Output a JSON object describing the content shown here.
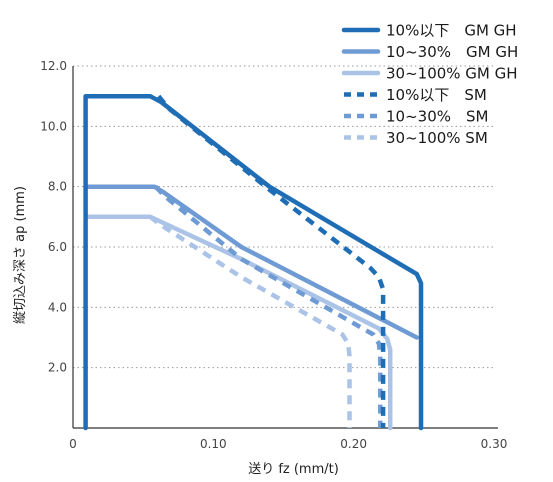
{
  "chart_data": {
    "type": "line",
    "xlabel": "送り fz (mm/t)",
    "ylabel": "縦切込み深さ ap (mm)",
    "xlim": [
      0,
      0.3
    ],
    "ylim": [
      0,
      12.0
    ],
    "x_ticks": [
      "0",
      "0.10",
      "0.20",
      "0.30"
    ],
    "y_ticks": [
      "2.0",
      "4.0",
      "6.0",
      "8.0",
      "10.0",
      "12.0"
    ],
    "grid": "dotted horizontal",
    "legend_position": "top-right",
    "series": [
      {
        "name": "10%以下　GM GH",
        "color": "#1f6eb5",
        "style": "solid",
        "points": [
          [
            0.009,
            0
          ],
          [
            0.009,
            11.0
          ],
          [
            0.055,
            11.0
          ],
          [
            0.063,
            10.8
          ],
          [
            0.14,
            8.0
          ],
          [
            0.245,
            5.1
          ],
          [
            0.248,
            4.8
          ],
          [
            0.248,
            0
          ]
        ]
      },
      {
        "name": "10~30%　GM GH",
        "color": "#6e9bd3",
        "style": "solid",
        "points": [
          [
            0.009,
            8.0
          ],
          [
            0.058,
            8.0
          ],
          [
            0.065,
            7.8
          ],
          [
            0.12,
            6.0
          ],
          [
            0.245,
            3.0
          ]
        ]
      },
      {
        "name": "30~100% GM GH",
        "color": "#aac3e6",
        "style": "solid",
        "points": [
          [
            0.009,
            7.0
          ],
          [
            0.055,
            7.0
          ],
          [
            0.062,
            6.85
          ],
          [
            0.12,
            5.6
          ],
          [
            0.218,
            3.3
          ],
          [
            0.224,
            2.95
          ],
          [
            0.226,
            2.6
          ],
          [
            0.226,
            0
          ]
        ]
      },
      {
        "name": "10%以下　SM",
        "color": "#1f6eb5",
        "style": "dashed",
        "points": [
          [
            0.061,
            11.0
          ],
          [
            0.068,
            10.6
          ],
          [
            0.14,
            7.9
          ],
          [
            0.212,
            5.3
          ],
          [
            0.218,
            5.0
          ],
          [
            0.221,
            4.6
          ],
          [
            0.221,
            0
          ]
        ]
      },
      {
        "name": "10~30%　SM",
        "color": "#6e9bd3",
        "style": "dashed",
        "points": [
          [
            0.059,
            8.0
          ],
          [
            0.065,
            7.7
          ],
          [
            0.12,
            5.6
          ],
          [
            0.214,
            3.1
          ],
          [
            0.218,
            2.8
          ],
          [
            0.219,
            2.4
          ],
          [
            0.219,
            0
          ]
        ]
      },
      {
        "name": "30~100% SM",
        "color": "#aac3e6",
        "style": "dashed",
        "points": [
          [
            0.055,
            7.0
          ],
          [
            0.062,
            6.75
          ],
          [
            0.12,
            5.0
          ],
          [
            0.192,
            3.1
          ],
          [
            0.196,
            2.8
          ],
          [
            0.197,
            2.4
          ],
          [
            0.197,
            0
          ]
        ]
      }
    ]
  }
}
